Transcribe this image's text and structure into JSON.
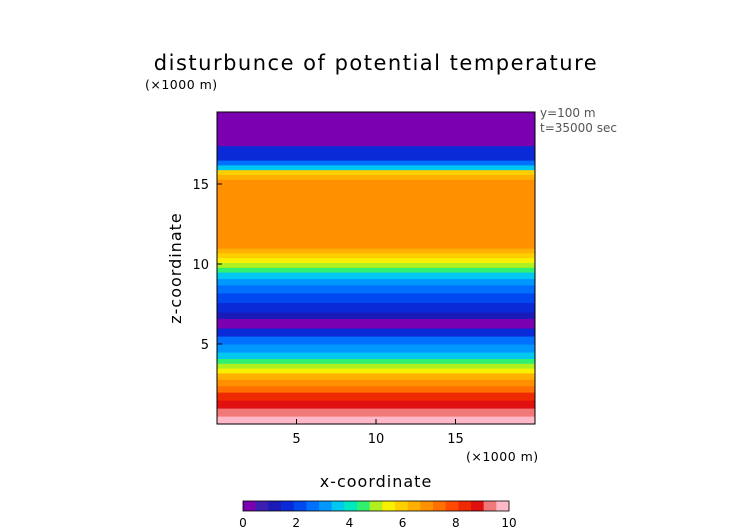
{
  "chart_data": {
    "type": "heatmap",
    "title": "disturbunce of potential temperature",
    "unit_label_top": "(×1000 m)",
    "unit_label_bottom": "(×1000 m)",
    "annotation_line1": "y=100 m",
    "annotation_line2": "t=35000 sec",
    "xlabel": "x-coordinate",
    "ylabel": "z-coordinate",
    "xlim": [
      0,
      20
    ],
    "ylim": [
      0,
      19.5
    ],
    "x_ticks": [
      5,
      10,
      15
    ],
    "y_ticks": [
      5,
      10,
      15
    ],
    "colorbar": {
      "range": [
        0,
        10
      ],
      "ticks": [
        0,
        2,
        4,
        6,
        8,
        10
      ],
      "colors": [
        "#7a00b0",
        "#3a1fb0",
        "#1a1ab8",
        "#0a2ad8",
        "#0048f0",
        "#0070ff",
        "#0098ff",
        "#00c8f0",
        "#00e8c0",
        "#30f070",
        "#b0f020",
        "#f8f000",
        "#ffd000",
        "#ffb000",
        "#ff9000",
        "#ff7000",
        "#ff4a00",
        "#f02a00",
        "#e01010",
        "#f07878",
        "#ffb8c8"
      ]
    },
    "bands": [
      {
        "z_from": 0.0,
        "z_to": 0.5,
        "value": 9.9
      },
      {
        "z_from": 0.5,
        "z_to": 1.0,
        "value": 9.4
      },
      {
        "z_from": 1.0,
        "z_to": 1.5,
        "value": 8.9
      },
      {
        "z_from": 1.5,
        "z_to": 2.0,
        "value": 8.3
      },
      {
        "z_from": 2.0,
        "z_to": 2.4,
        "value": 7.6
      },
      {
        "z_from": 2.4,
        "z_to": 2.8,
        "value": 7.1
      },
      {
        "z_from": 2.8,
        "z_to": 3.2,
        "value": 6.3
      },
      {
        "z_from": 3.2,
        "z_to": 3.5,
        "value": 5.7
      },
      {
        "z_from": 3.5,
        "z_to": 3.8,
        "value": 5.2
      },
      {
        "z_from": 3.8,
        "z_to": 4.1,
        "value": 4.6
      },
      {
        "z_from": 4.1,
        "z_to": 4.5,
        "value": 3.8
      },
      {
        "z_from": 4.5,
        "z_to": 5.0,
        "value": 3.1
      },
      {
        "z_from": 5.0,
        "z_to": 5.5,
        "value": 2.5
      },
      {
        "z_from": 5.5,
        "z_to": 6.0,
        "value": 1.7
      },
      {
        "z_from": 6.0,
        "z_to": 6.6,
        "value": 0.4
      },
      {
        "z_from": 6.6,
        "z_to": 7.0,
        "value": 1.2
      },
      {
        "z_from": 7.0,
        "z_to": 7.6,
        "value": 1.8
      },
      {
        "z_from": 7.6,
        "z_to": 8.2,
        "value": 2.3
      },
      {
        "z_from": 8.2,
        "z_to": 8.7,
        "value": 2.8
      },
      {
        "z_from": 8.7,
        "z_to": 9.1,
        "value": 3.3
      },
      {
        "z_from": 9.1,
        "z_to": 9.5,
        "value": 3.8
      },
      {
        "z_from": 9.5,
        "z_to": 9.8,
        "value": 4.3
      },
      {
        "z_from": 9.8,
        "z_to": 10.1,
        "value": 4.9
      },
      {
        "z_from": 10.1,
        "z_to": 10.4,
        "value": 5.4
      },
      {
        "z_from": 10.4,
        "z_to": 10.7,
        "value": 6.0
      },
      {
        "z_from": 10.7,
        "z_to": 11.0,
        "value": 6.4
      },
      {
        "z_from": 11.0,
        "z_to": 11.6,
        "value": 6.8
      },
      {
        "z_from": 11.6,
        "z_to": 15.0,
        "value": 7.1
      },
      {
        "z_from": 15.0,
        "z_to": 15.3,
        "value": 6.7
      },
      {
        "z_from": 15.3,
        "z_to": 15.6,
        "value": 6.4
      },
      {
        "z_from": 15.6,
        "z_to": 15.9,
        "value": 6.0
      },
      {
        "z_from": 15.9,
        "z_to": 16.2,
        "value": 3.6
      },
      {
        "z_from": 16.2,
        "z_to": 16.5,
        "value": 2.6
      },
      {
        "z_from": 16.5,
        "z_to": 17.4,
        "value": 1.8
      },
      {
        "z_from": 17.4,
        "z_to": 19.5,
        "value": 0.3
      }
    ]
  }
}
